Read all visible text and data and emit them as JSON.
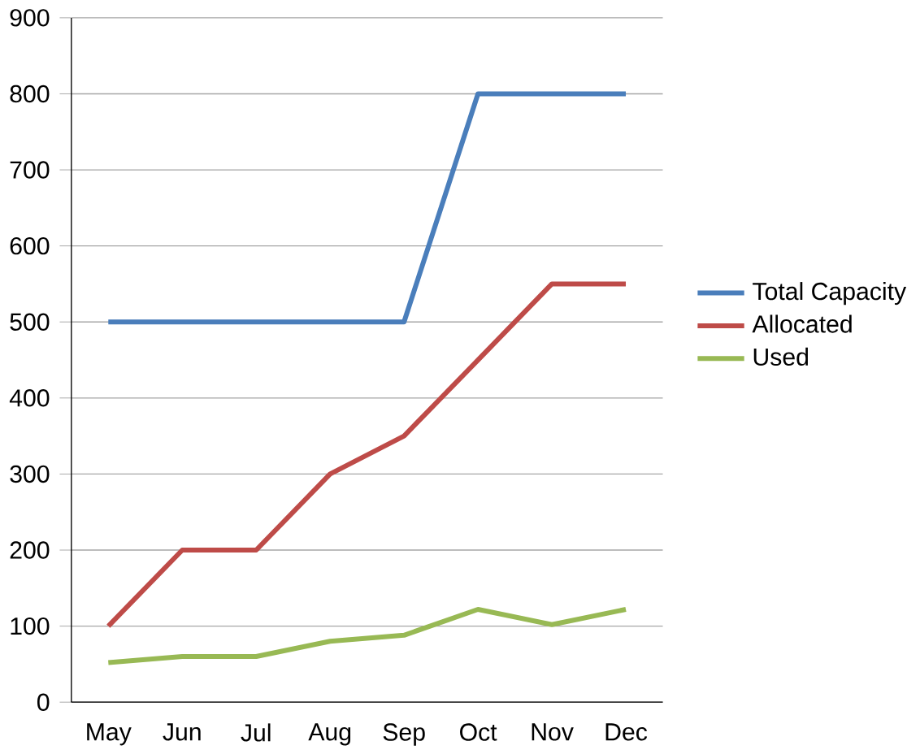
{
  "chart_data": {
    "type": "line",
    "categories": [
      "May",
      "Jun",
      "Jul",
      "Aug",
      "Sep",
      "Oct",
      "Nov",
      "Dec"
    ],
    "series": [
      {
        "name": "Total Capacity",
        "color": "#4a7ebb",
        "values": [
          500,
          500,
          500,
          500,
          500,
          800,
          800,
          800
        ]
      },
      {
        "name": "Allocated",
        "color": "#be4b48",
        "values": [
          100,
          200,
          200,
          300,
          350,
          450,
          550,
          550
        ]
      },
      {
        "name": "Used",
        "color": "#98b954",
        "values": [
          52,
          60,
          60,
          80,
          88,
          122,
          102,
          122
        ]
      }
    ],
    "ylim": [
      0,
      900
    ],
    "yticks": [
      0,
      100,
      200,
      300,
      400,
      500,
      600,
      700,
      800,
      900
    ],
    "grid": "y",
    "legend": "right",
    "marker": "none",
    "line_style": "solid"
  }
}
